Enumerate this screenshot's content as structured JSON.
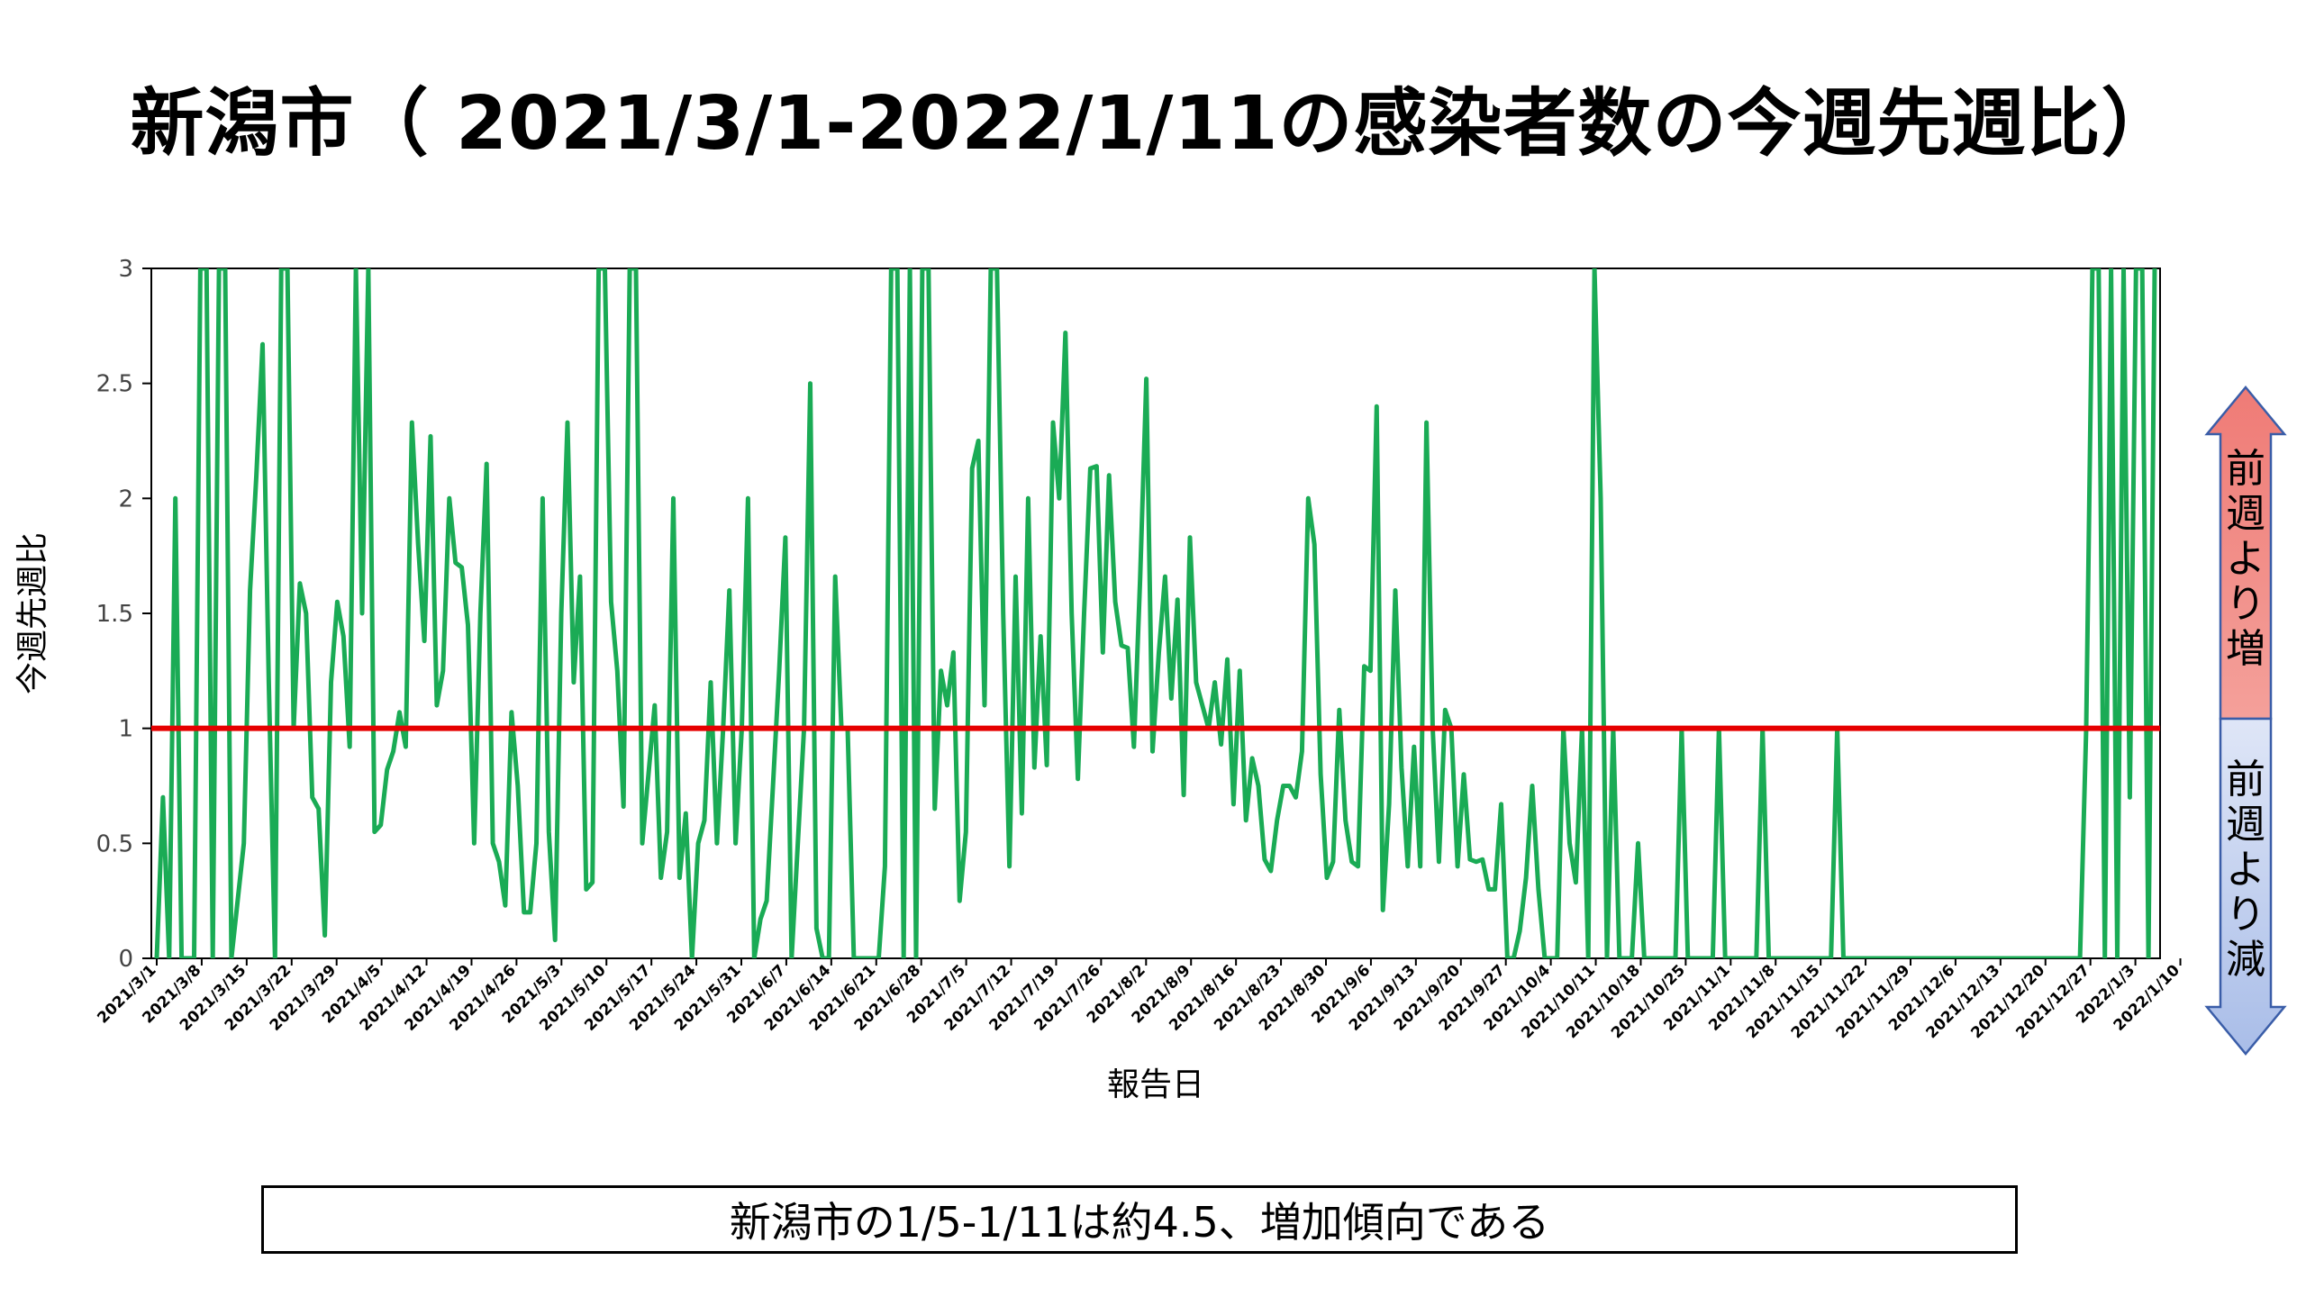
{
  "title": "新潟市（ 2021/3/1-2022/1/11の感染者数の今週先週比）",
  "summary": "新潟市の1/5-1/11は約4.5、増加傾向である",
  "indicator": {
    "up_label": "前週より増",
    "down_label": "前週より減",
    "up_color": "#f4a09a",
    "down_color": "#a9bde8"
  },
  "chart_data": {
    "type": "line",
    "title": "",
    "xlabel": "報告日",
    "ylabel": "今週先週比",
    "ylim": [
      0,
      3
    ],
    "yticks": [
      "0",
      "0.5",
      "1",
      "1.5",
      "2",
      "2.5",
      "3"
    ],
    "grid": false,
    "x_start": "2021/3/1",
    "x_end": "2022/1/11",
    "x_tick_labels": [
      "2021/3/1",
      "2021/3/8",
      "2021/3/15",
      "2021/3/22",
      "2021/3/29",
      "2021/4/5",
      "2021/4/12",
      "2021/4/19",
      "2021/4/26",
      "2021/5/3",
      "2021/5/10",
      "2021/5/17",
      "2021/5/24",
      "2021/5/31",
      "2021/6/7",
      "2021/6/14",
      "2021/6/21",
      "2021/6/28",
      "2021/7/5",
      "2021/7/12",
      "2021/7/19",
      "2021/7/26",
      "2021/8/2",
      "2021/8/9",
      "2021/8/16",
      "2021/8/23",
      "2021/8/30",
      "2021/9/6",
      "2021/9/13",
      "2021/9/20",
      "2021/9/27",
      "2021/10/4",
      "2021/10/11",
      "2021/10/18",
      "2021/10/25",
      "2021/11/1",
      "2021/11/8",
      "2021/11/15",
      "2021/11/22",
      "2021/11/29",
      "2021/12/6",
      "2021/12/13",
      "2021/12/20",
      "2021/12/27",
      "2022/1/3",
      "2022/1/10"
    ],
    "series": [
      {
        "name": "",
        "color": "#1aab55",
        "values": [
          0,
          0.7,
          0,
          2,
          0,
          0,
          0,
          3,
          3,
          0,
          3,
          3,
          0,
          0.25,
          0.5,
          1.6,
          2.1,
          2.67,
          1.2,
          0,
          3,
          3,
          1,
          1.63,
          1.5,
          0.7,
          0.65,
          0.1,
          1.2,
          1.55,
          1.4,
          0.92,
          3,
          1.5,
          3,
          0.55,
          0.58,
          0.82,
          0.9,
          1.07,
          0.92,
          2.33,
          1.8,
          1.38,
          2.27,
          1.1,
          1.25,
          2,
          1.72,
          1.7,
          1.45,
          0.5,
          1.5,
          2.15,
          0.5,
          0.42,
          0.23,
          1.07,
          0.75,
          0.2,
          0.2,
          0.5,
          2,
          0.55,
          0.08,
          1.5,
          2.33,
          1.2,
          1.66,
          0.3,
          0.33,
          3,
          3,
          1.55,
          1.25,
          0.66,
          3,
          3,
          0.5,
          0.8,
          1.1,
          0.35,
          0.55,
          2,
          0.35,
          0.63,
          0,
          0.5,
          0.6,
          1.2,
          0.5,
          1,
          1.6,
          0.5,
          1,
          2,
          0,
          0.17,
          0.25,
          0.75,
          1.25,
          1.83,
          0,
          0.5,
          1,
          2.5,
          0.13,
          0,
          0,
          1.66,
          1.0,
          1.0,
          0,
          0,
          0,
          0,
          0,
          0.4,
          3,
          3,
          0,
          3,
          0,
          3,
          3,
          0.65,
          1.25,
          1.1,
          1.33,
          0.25,
          0.55,
          2.13,
          2.25,
          1.1,
          3,
          3,
          1.5,
          0.4,
          1.66,
          0.63,
          2,
          0.83,
          1.4,
          0.84,
          2.33,
          2,
          2.72,
          1.5,
          0.78,
          1.5,
          2.13,
          2.14,
          1.33,
          2.1,
          1.55,
          1.36,
          1.35,
          0.92,
          1.65,
          2.52,
          0.9,
          1.33,
          1.66,
          1.13,
          1.56,
          0.71,
          1.83,
          1.2,
          1.1,
          1,
          1.2,
          0.93,
          1.3,
          0.67,
          1.25,
          0.6,
          0.87,
          0.75,
          0.43,
          0.38,
          0.6,
          0.75,
          0.75,
          0.7,
          0.9,
          2,
          1.8,
          0.8,
          0.35,
          0.42,
          1.08,
          0.6,
          0.42,
          0.4,
          1.27,
          1.25,
          2.4,
          0.21,
          0.67,
          1.6,
          0.83,
          0.4,
          0.92,
          0.4,
          2.33,
          1.0,
          0.42,
          1.08,
          1.0,
          0.4,
          0.8,
          0.43,
          0.42,
          0.43,
          0.3,
          0.3,
          0.67,
          0,
          0,
          0.12,
          0.35,
          0.75,
          0.3,
          0,
          0,
          0,
          1,
          0.5,
          0.33,
          1,
          0,
          3,
          2,
          0,
          1,
          0,
          0,
          0,
          0.5,
          0,
          0,
          0,
          0,
          0,
          0,
          1,
          0,
          0,
          0,
          0,
          0,
          1,
          0,
          0,
          0,
          0,
          0,
          0,
          1,
          0,
          0,
          0,
          0,
          0,
          0,
          0,
          0,
          0,
          0,
          0,
          1,
          0,
          0,
          0,
          0,
          0,
          0,
          0,
          0,
          0,
          0,
          0,
          0,
          0,
          0,
          0,
          0,
          0,
          0,
          0,
          0,
          0,
          0,
          0,
          0,
          0,
          0,
          0,
          0,
          0,
          0,
          0,
          0,
          0,
          0,
          0,
          0,
          0,
          0,
          0,
          1,
          3,
          3,
          0,
          3,
          0,
          3,
          0.7,
          3,
          3,
          0,
          3
        ]
      }
    ],
    "reference_line": {
      "y": 1,
      "color": "#e60000"
    }
  }
}
